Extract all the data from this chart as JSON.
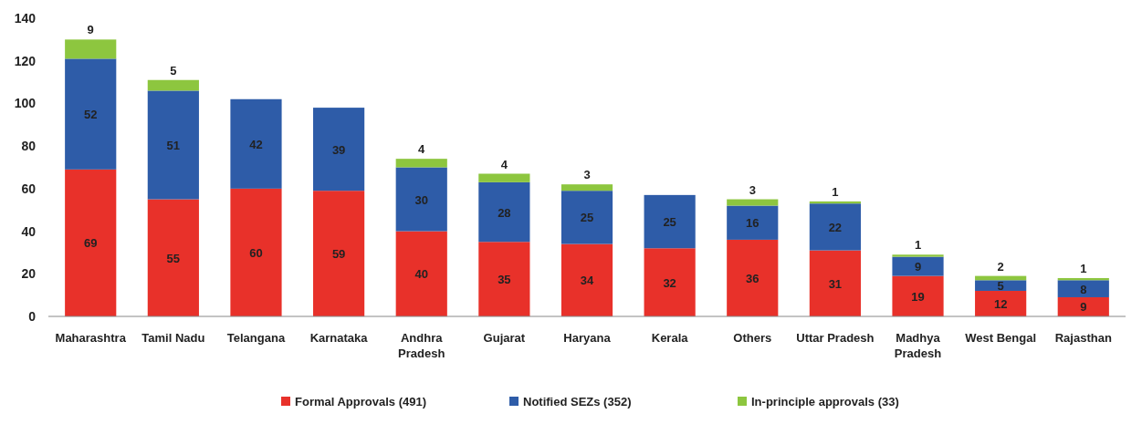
{
  "chart_data": {
    "type": "bar",
    "stacked": true,
    "categories": [
      "Maharashtra",
      "Tamil Nadu",
      "Telangana",
      "Karnataka",
      "Andhra Pradesh",
      "Gujarat",
      "Haryana",
      "Kerala",
      "Others",
      "Uttar Pradesh",
      "Madhya Pradesh",
      "West Bengal",
      "Rajasthan"
    ],
    "series": [
      {
        "name": "Formal Approvals (491)",
        "color": "#e8312a",
        "values": [
          69,
          55,
          60,
          59,
          40,
          35,
          34,
          32,
          36,
          31,
          19,
          12,
          9
        ]
      },
      {
        "name": "Notified SEZs (352)",
        "color": "#2e5ca8",
        "values": [
          52,
          51,
          42,
          39,
          30,
          28,
          25,
          25,
          16,
          22,
          9,
          5,
          8
        ]
      },
      {
        "name": "In-principle approvals (33)",
        "color": "#8dc63f",
        "values": [
          9,
          5,
          null,
          null,
          4,
          4,
          3,
          null,
          3,
          1,
          1,
          2,
          1
        ]
      }
    ],
    "ylim": [
      0,
      140
    ],
    "yticks": [
      0,
      20,
      40,
      60,
      80,
      100,
      120,
      140
    ],
    "grid": false,
    "legend": "bottom",
    "data_labels": true
  }
}
